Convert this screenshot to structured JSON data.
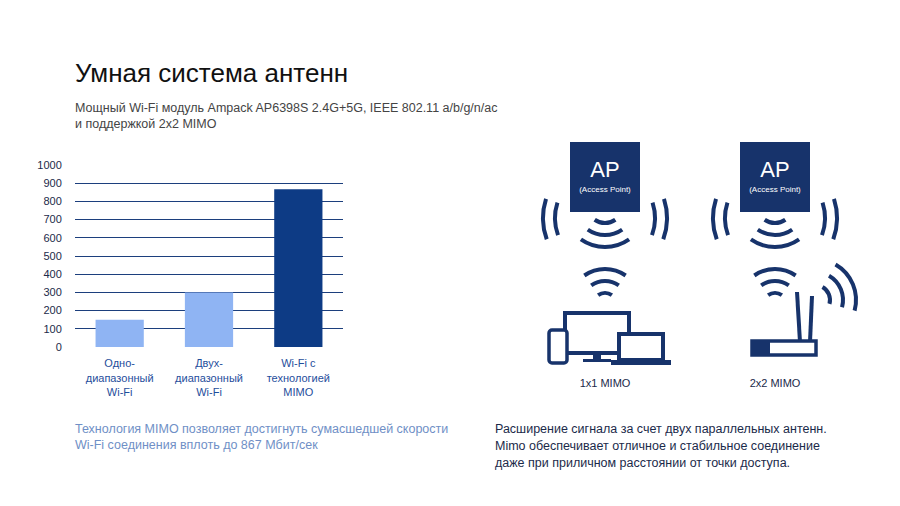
{
  "chart_data": {
    "type": "bar",
    "categories": [
      "Одно-\nдиапазонный\nWi-Fi",
      "Двух-\nдиапазонный\nWi-Fi",
      "Wi-Fi с\nтехнологией\nMIMO"
    ],
    "values": [
      150,
      300,
      867
    ],
    "colors": [
      "#8fb4f3",
      "#8fb4f3",
      "#0d3b85"
    ],
    "ylim": [
      0,
      1000
    ],
    "yticks": [
      0,
      100,
      200,
      300,
      400,
      500,
      600,
      700,
      800,
      900,
      1000
    ],
    "grid": true
  },
  "slide": {
    "title": "Умная система антенн",
    "subtitle": "Мощный Wi-Fi модуль Ampack AP6398S 2.4G+5G, IEEE 802.11 a/b/g/n/ac\nи поддержкой 2x2 MIMO",
    "chart_caption": "Технология MIMO позволяет достигнуть сумасшедшей скорости\nWi-Fi соединения вплоть до 867 Мбит/сек",
    "diagram": {
      "panels": [
        {
          "node": "AP",
          "node_caption": "(Access Point)",
          "label": "1x1 MIMO"
        },
        {
          "node": "AP",
          "node_caption": "(Access Point)",
          "label": "2x2 MIMO"
        }
      ],
      "caption": "Расширение сигнала за счет двух параллельных антенн.\nMimo обеспечивает отличное и стабильное соединение\nдаже при приличном расстоянии от точки доступа."
    }
  }
}
